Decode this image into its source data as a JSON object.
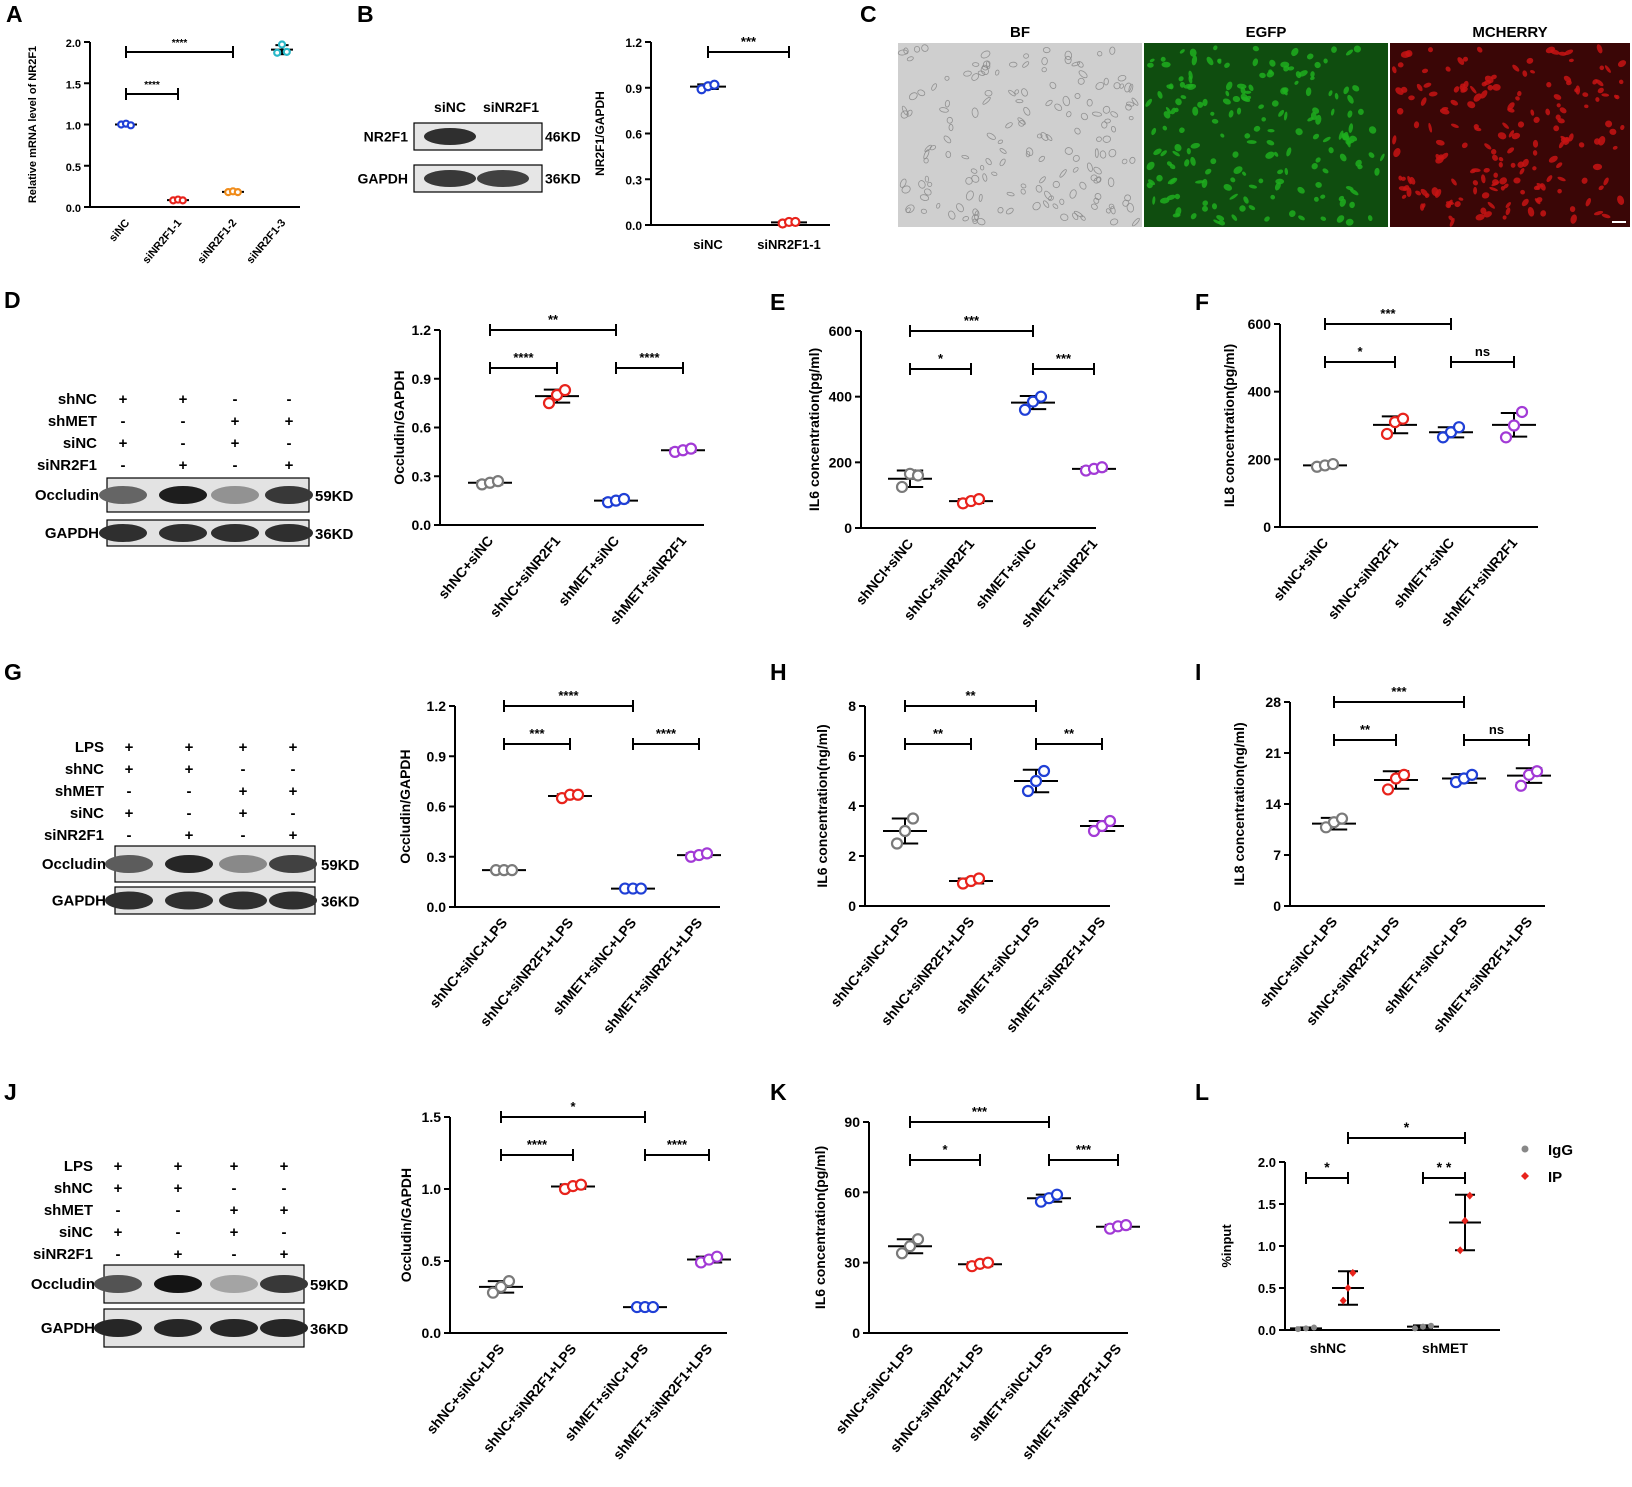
{
  "panel_letters": [
    "A",
    "B",
    "C",
    "D",
    "E",
    "F",
    "G",
    "H",
    "I",
    "J",
    "K",
    "L"
  ],
  "blots": {
    "B": {
      "lanes": [
        "siNC",
        "siNR2F1"
      ],
      "rows": [
        {
          "label": "NR2F1",
          "size": "46KD",
          "intensity": [
            0.85,
            0.0
          ]
        },
        {
          "label": "GAPDH",
          "size": "36KD",
          "intensity": [
            0.8,
            0.75
          ]
        }
      ]
    },
    "D": {
      "conditions": [
        {
          "label": "shNC",
          "signs": [
            "+",
            "+",
            "-",
            "-"
          ]
        },
        {
          "label": "shMET",
          "signs": [
            "-",
            "-",
            "+",
            "+"
          ]
        },
        {
          "label": "siNC",
          "signs": [
            "+",
            "-",
            "+",
            "-"
          ]
        },
        {
          "label": "siNR2F1",
          "signs": [
            "-",
            "+",
            "-",
            "+"
          ]
        }
      ],
      "rows": [
        {
          "label": "Occludin",
          "size": "59KD",
          "intensity": [
            0.55,
            0.95,
            0.3,
            0.8
          ]
        },
        {
          "label": "GAPDH",
          "size": "36KD",
          "intensity": [
            0.85,
            0.85,
            0.85,
            0.85
          ]
        }
      ]
    },
    "G": {
      "conditions": [
        {
          "label": "LPS",
          "signs": [
            "+",
            "+",
            "+",
            "+"
          ]
        },
        {
          "label": "shNC",
          "signs": [
            "+",
            "+",
            "-",
            "-"
          ]
        },
        {
          "label": "shMET",
          "signs": [
            "-",
            "-",
            "+",
            "+"
          ]
        },
        {
          "label": "siNC",
          "signs": [
            "+",
            "-",
            "+",
            "-"
          ]
        },
        {
          "label": "siNR2F1",
          "signs": [
            "-",
            "+",
            "-",
            "+"
          ]
        }
      ],
      "rows": [
        {
          "label": "Occludin",
          "size": "59KD",
          "intensity": [
            0.6,
            0.9,
            0.35,
            0.75
          ]
        },
        {
          "label": "GAPDH",
          "size": "36KD",
          "intensity": [
            0.85,
            0.85,
            0.85,
            0.85
          ]
        }
      ]
    },
    "J": {
      "conditions": [
        {
          "label": "LPS",
          "signs": [
            "+",
            "+",
            "+",
            "+"
          ]
        },
        {
          "label": "shNC",
          "signs": [
            "+",
            "+",
            "-",
            "-"
          ]
        },
        {
          "label": "shMET",
          "signs": [
            "-",
            "-",
            "+",
            "+"
          ]
        },
        {
          "label": "siNC",
          "signs": [
            "+",
            "-",
            "+",
            "-"
          ]
        },
        {
          "label": "siNR2F1",
          "signs": [
            "-",
            "+",
            "-",
            "+"
          ]
        }
      ],
      "rows": [
        {
          "label": "Occludin",
          "size": "59KD",
          "intensity": [
            0.65,
            1.0,
            0.2,
            0.8
          ]
        },
        {
          "label": "GAPDH",
          "size": "36KD",
          "intensity": [
            0.9,
            0.9,
            0.9,
            0.9
          ]
        }
      ]
    }
  },
  "micrographs": {
    "labels": [
      "BF",
      "EGFP",
      "MCHERRY"
    ],
    "colors": [
      "#c8c8c8",
      "#1fae1f",
      "#c81414"
    ]
  },
  "chart_data": [
    {
      "panel": "A",
      "type": "scatter",
      "xlabel": "",
      "ylabel": "Relative mRNA level of NR2F1",
      "ylim": [
        0,
        2.0
      ],
      "ticks": [
        "0.0",
        "0.5",
        "1.0",
        "1.5",
        "2.0"
      ],
      "categories": [
        "siNC",
        "siNR2F1-1",
        "siNR2F1-2",
        "siNR2F1-3"
      ],
      "colors": [
        "#1f3fd6",
        "#e8231c",
        "#f08c1a",
        "#2ab8c8"
      ],
      "groups": [
        [
          1.0,
          1.01,
          0.99
        ],
        [
          0.08,
          0.09,
          0.08
        ],
        [
          0.18,
          0.19,
          0.18
        ],
        [
          1.87,
          1.97,
          1.88
        ]
      ],
      "mean": [
        1.0,
        0.083,
        0.183,
        1.907
      ],
      "sd": [
        0.01,
        0.005,
        0.005,
        0.055
      ],
      "comparisons": [
        {
          "a": 0,
          "b": 1,
          "label": "****"
        },
        {
          "a": 0,
          "b": 2,
          "label": "****"
        }
      ]
    },
    {
      "panel": "B",
      "type": "scatter",
      "xlabel": "",
      "ylabel": "NR2F1/GAPDH",
      "ylim": [
        0,
        1.2
      ],
      "ticks": [
        "0.0",
        "0.3",
        "0.6",
        "0.9",
        "1.2"
      ],
      "categories": [
        "siNC",
        "siNR2F1-1"
      ],
      "colors": [
        "#1f3fd6",
        "#e8231c"
      ],
      "groups": [
        [
          0.89,
          0.91,
          0.92
        ],
        [
          0.01,
          0.02,
          0.02
        ]
      ],
      "mean": [
        0.907,
        0.017
      ],
      "sd": [
        0.015,
        0.006
      ],
      "comparisons": [
        {
          "a": 0,
          "b": 1,
          "label": "***"
        }
      ]
    },
    {
      "panel": "D",
      "type": "scatter",
      "xlabel": "",
      "ylabel": "Occludin/GAPDH",
      "ylim": [
        0,
        1.2
      ],
      "ticks": [
        "0.0",
        "0.3",
        "0.6",
        "0.9",
        "1.2"
      ],
      "categories": [
        "shNC+siNC",
        "shNC+siNR2F1",
        "shMET+siNC",
        "shMET+siNR2F1"
      ],
      "colors": [
        "#7a7a7a",
        "#e8231c",
        "#1f3fd6",
        "#a23ad6"
      ],
      "groups": [
        [
          0.25,
          0.26,
          0.27
        ],
        [
          0.75,
          0.8,
          0.83
        ],
        [
          0.14,
          0.15,
          0.16
        ],
        [
          0.45,
          0.46,
          0.47
        ]
      ],
      "mean": [
        0.26,
        0.793,
        0.15,
        0.46
      ],
      "sd": [
        0.01,
        0.04,
        0.01,
        0.01
      ],
      "comparisons": [
        {
          "a": 0,
          "b": 1,
          "label": "****"
        },
        {
          "a": 2,
          "b": 3,
          "label": "****"
        },
        {
          "a": 0,
          "b": 2,
          "label": "**"
        }
      ]
    },
    {
      "panel": "E",
      "type": "scatter",
      "xlabel": "",
      "ylabel": "IL6 concentration(pg/ml)",
      "ylim": [
        0,
        600
      ],
      "ticks": [
        "0",
        "200",
        "400",
        "600"
      ],
      "categories": [
        "shNCl+siNC",
        "shNC+siNR2F1",
        "shMET+siNC",
        "shMET+siNR2F1"
      ],
      "colors": [
        "#7a7a7a",
        "#e8231c",
        "#1f3fd6",
        "#a23ad6"
      ],
      "groups": [
        [
          125,
          165,
          160
        ],
        [
          75,
          82,
          88
        ],
        [
          360,
          385,
          400
        ],
        [
          175,
          180,
          185
        ]
      ],
      "mean": [
        150,
        82,
        382,
        180
      ],
      "sd": [
        25,
        6,
        20,
        5
      ],
      "comparisons": [
        {
          "a": 0,
          "b": 1,
          "label": "*"
        },
        {
          "a": 2,
          "b": 3,
          "label": "***"
        },
        {
          "a": 0,
          "b": 2,
          "label": "***"
        }
      ]
    },
    {
      "panel": "F",
      "type": "scatter",
      "xlabel": "",
      "ylabel": "IL8 concentration(pg/ml)",
      "ylim": [
        0,
        600
      ],
      "ticks": [
        "0",
        "200",
        "400",
        "600"
      ],
      "categories": [
        "shNC+siNC",
        "shNC+siNR2F1",
        "shMET+siNC",
        "shMET+siNR2F1"
      ],
      "colors": [
        "#7a7a7a",
        "#e8231c",
        "#1f3fd6",
        "#a23ad6"
      ],
      "groups": [
        [
          178,
          182,
          186
        ],
        [
          275,
          310,
          320
        ],
        [
          265,
          280,
          295
        ],
        [
          265,
          300,
          340
        ]
      ],
      "mean": [
        182,
        302,
        280,
        302
      ],
      "sd": [
        4,
        25,
        15,
        35
      ],
      "comparisons": [
        {
          "a": 0,
          "b": 1,
          "label": "*"
        },
        {
          "a": 2,
          "b": 3,
          "label": "ns"
        },
        {
          "a": 0,
          "b": 2,
          "label": "***"
        }
      ]
    },
    {
      "panel": "G",
      "type": "scatter",
      "xlabel": "",
      "ylabel": "Occludin/GAPDH",
      "ylim": [
        0,
        1.2
      ],
      "ticks": [
        "0.0",
        "0.3",
        "0.6",
        "0.9",
        "1.2"
      ],
      "categories": [
        "shNC+siNC+LPS",
        "shNC+siNR2F1+LPS",
        "shMET+siNC+LPS",
        "shMET+siNR2F1+LPS"
      ],
      "colors": [
        "#7a7a7a",
        "#e8231c",
        "#1f3fd6",
        "#a23ad6"
      ],
      "groups": [
        [
          0.22,
          0.22,
          0.22
        ],
        [
          0.65,
          0.67,
          0.67
        ],
        [
          0.11,
          0.11,
          0.11
        ],
        [
          0.3,
          0.31,
          0.32
        ]
      ],
      "mean": [
        0.22,
        0.663,
        0.11,
        0.31
      ],
      "sd": [
        0.003,
        0.01,
        0.003,
        0.01
      ],
      "comparisons": [
        {
          "a": 0,
          "b": 1,
          "label": "***"
        },
        {
          "a": 2,
          "b": 3,
          "label": "****"
        },
        {
          "a": 0,
          "b": 2,
          "label": "****"
        }
      ]
    },
    {
      "panel": "H",
      "type": "scatter",
      "xlabel": "",
      "ylabel": "IL6 concentration(ng/ml)",
      "ylim": [
        0,
        8
      ],
      "ticks": [
        "0",
        "2",
        "4",
        "6",
        "8"
      ],
      "categories": [
        "shNC+siNC+LPS",
        "shNC+siNR2F1+LPS",
        "shMET+siNC+LPS",
        "shMET+siNR2F1+LPS"
      ],
      "colors": [
        "#7a7a7a",
        "#e8231c",
        "#1f3fd6",
        "#a23ad6"
      ],
      "groups": [
        [
          2.5,
          3.0,
          3.5
        ],
        [
          0.9,
          1.0,
          1.1
        ],
        [
          4.6,
          5.0,
          5.4
        ],
        [
          3.0,
          3.2,
          3.4
        ]
      ],
      "mean": [
        3.0,
        1.0,
        5.0,
        3.2
      ],
      "sd": [
        0.5,
        0.1,
        0.45,
        0.2
      ],
      "comparisons": [
        {
          "a": 0,
          "b": 1,
          "label": "**"
        },
        {
          "a": 2,
          "b": 3,
          "label": "**"
        },
        {
          "a": 0,
          "b": 2,
          "label": "**"
        }
      ]
    },
    {
      "panel": "I",
      "type": "scatter",
      "xlabel": "",
      "ylabel": "IL8 concentration(ng/ml)",
      "ylim": [
        0,
        28
      ],
      "ticks": [
        "0",
        "7",
        "14",
        "21",
        "28"
      ],
      "categories": [
        "shNC+siNC+LPS",
        "shNC+siNR2F1+LPS",
        "shMET+siNC+LPS",
        "shMET+siNR2F1+LPS"
      ],
      "colors": [
        "#7a7a7a",
        "#e8231c",
        "#1f3fd6",
        "#a23ad6"
      ],
      "groups": [
        [
          10.8,
          11.5,
          12.0
        ],
        [
          16.0,
          17.5,
          18.0
        ],
        [
          17.0,
          17.5,
          18.0
        ],
        [
          16.5,
          18.0,
          18.5
        ]
      ],
      "mean": [
        11.3,
        17.3,
        17.5,
        17.9
      ],
      "sd": [
        0.8,
        1.2,
        0.6,
        1.0
      ],
      "comparisons": [
        {
          "a": 0,
          "b": 1,
          "label": "**"
        },
        {
          "a": 2,
          "b": 3,
          "label": "ns"
        },
        {
          "a": 0,
          "b": 2,
          "label": "***"
        }
      ]
    },
    {
      "panel": "J",
      "type": "scatter",
      "xlabel": "",
      "ylabel": "Occludin/GAPDH",
      "ylim": [
        0,
        1.5
      ],
      "ticks": [
        "0.0",
        "0.5",
        "1.0",
        "1.5"
      ],
      "categories": [
        "shNC+siNC+LPS",
        "shNC+siNR2F1+LPS",
        "shMET+siNC+LPS",
        "shMET+siNR2F1+LPS"
      ],
      "colors": [
        "#7a7a7a",
        "#e8231c",
        "#1f3fd6",
        "#a23ad6"
      ],
      "groups": [
        [
          0.28,
          0.32,
          0.36
        ],
        [
          1.0,
          1.02,
          1.03
        ],
        [
          0.18,
          0.18,
          0.18
        ],
        [
          0.49,
          0.51,
          0.53
        ]
      ],
      "mean": [
        0.32,
        1.017,
        0.18,
        0.51
      ],
      "sd": [
        0.04,
        0.015,
        0.003,
        0.02
      ],
      "comparisons": [
        {
          "a": 0,
          "b": 1,
          "label": "****"
        },
        {
          "a": 2,
          "b": 3,
          "label": "****"
        },
        {
          "a": 0,
          "b": 2,
          "label": "*"
        }
      ]
    },
    {
      "panel": "K",
      "type": "scatter",
      "xlabel": "",
      "ylabel": "IL6 concentration(pg/ml)",
      "ylim": [
        0,
        90
      ],
      "ticks": [
        "0",
        "30",
        "60",
        "90"
      ],
      "categories": [
        "shNC+siNC+LPS",
        "shNC+siNR2F1+LPS",
        "shMET+siNC+LPS",
        "shMET+siNR2F1+LPS"
      ],
      "colors": [
        "#7a7a7a",
        "#e8231c",
        "#1f3fd6",
        "#a23ad6"
      ],
      "groups": [
        [
          34,
          37,
          40
        ],
        [
          28.5,
          29.5,
          30
        ],
        [
          56,
          57.5,
          59
        ],
        [
          44.5,
          45.5,
          46
        ]
      ],
      "mean": [
        37,
        29.3,
        57.5,
        45.3
      ],
      "sd": [
        3,
        0.8,
        1.5,
        0.8
      ],
      "comparisons": [
        {
          "a": 0,
          "b": 1,
          "label": "*"
        },
        {
          "a": 2,
          "b": 3,
          "label": "***"
        },
        {
          "a": 0,
          "b": 2,
          "label": "***"
        }
      ]
    },
    {
      "panel": "L",
      "type": "scatter",
      "xlabel": "",
      "ylabel": "%input",
      "ylim": [
        0,
        2.0
      ],
      "ticks": [
        "0.0",
        "0.5",
        "1.0",
        "1.5",
        "2.0"
      ],
      "categories": [
        "shNC",
        "shMET"
      ],
      "series": [
        {
          "name": "IgG",
          "color": "#888888",
          "groups": [
            [
              0.01,
              0.02,
              0.03
            ],
            [
              0.02,
              0.04,
              0.05
            ]
          ],
          "mean": [
            0.02,
            0.04
          ],
          "sd": [
            0.01,
            0.015
          ]
        },
        {
          "name": "IP",
          "color": "#e8231c",
          "groups": [
            [
              0.35,
              0.5,
              0.68
            ],
            [
              0.95,
              1.3,
              1.6
            ]
          ],
          "mean": [
            0.5,
            1.28
          ],
          "sd": [
            0.2,
            0.33
          ]
        }
      ],
      "comparisons": [
        {
          "a": "shNC",
          "label": "*"
        },
        {
          "a": "shMET",
          "label": "* *"
        },
        {
          "a": "between",
          "label": "*"
        }
      ],
      "legend": "top-right"
    }
  ]
}
